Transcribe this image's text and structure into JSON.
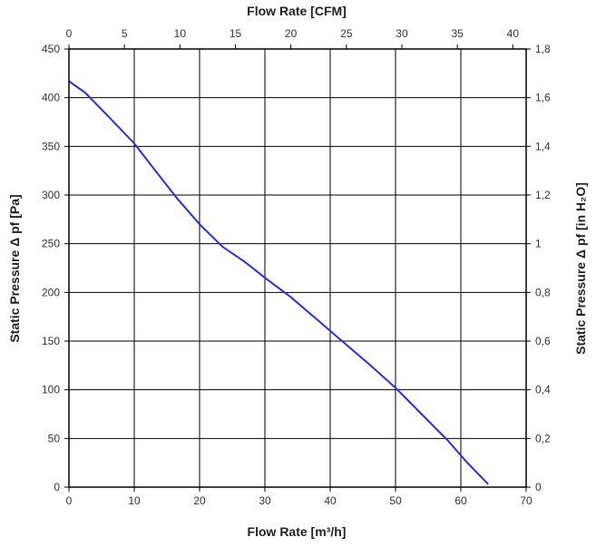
{
  "chart_data": {
    "type": "line",
    "title": "",
    "xlabel_bottom": "Flow Rate [m³/h]",
    "xlabel_top": "Flow Rate [CFM]",
    "ylabel_left": "Static Pressure Δ pf [Pa]",
    "ylabel_right": "Static Pressure Δ pf [in H₂O]",
    "xlim": [
      0,
      70
    ],
    "ylim": [
      0,
      450
    ],
    "x2lim": [
      0,
      41.2
    ],
    "y2lim": [
      0,
      1.8
    ],
    "grid": true,
    "x_ticks": [
      "0",
      "10",
      "20",
      "30",
      "40",
      "50",
      "60",
      "70"
    ],
    "y_ticks": [
      "0",
      "50",
      "100",
      "150",
      "200",
      "250",
      "300",
      "350",
      "400",
      "450"
    ],
    "x2_ticks": [
      "0",
      "5",
      "10",
      "15",
      "20",
      "25",
      "30",
      "35",
      "40"
    ],
    "y2_ticks": [
      "0",
      "0,2",
      "0,4",
      "0,6",
      "0,8",
      "1",
      "1,2",
      "1,4",
      "1,6",
      "1,8"
    ],
    "series": [
      {
        "color": "#2a2fd6",
        "x": [
          0,
          2.5,
          6,
          10,
          13,
          16.5,
          20,
          23.5,
          27,
          30,
          34,
          38,
          42,
          46,
          50,
          54,
          58,
          61,
          64.2
        ],
        "y": [
          417,
          405,
          381,
          353,
          327,
          297,
          270,
          247,
          231,
          215,
          195,
          172,
          149,
          126,
          102,
          75,
          48,
          25,
          3
        ]
      }
    ]
  }
}
